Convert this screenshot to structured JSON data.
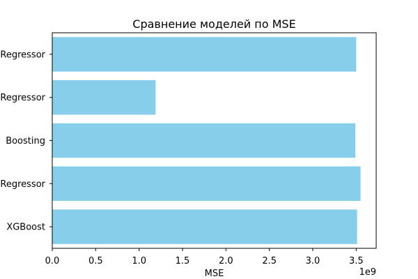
{
  "chart_data": {
    "type": "bar",
    "orientation": "horizontal",
    "title": "Сравнение моделей по MSE",
    "xlabel": "MSE",
    "ylabel": "",
    "x_offset_text": "1e9",
    "x_ticks": [
      "0.0",
      "0.5",
      "1.0",
      "1.5",
      "2.0",
      "2.5",
      "3.0",
      "3.5"
    ],
    "xlim": [
      0,
      3.73
    ],
    "x_scale": 1000000000,
    "categories": [
      "Regressor",
      "Regressor",
      "Boosting",
      "Regressor",
      "XGBoost"
    ],
    "values": [
      3.5,
      1.19,
      3.49,
      3.55,
      3.51
    ],
    "bar_color": "#87ceeb",
    "grid": false,
    "legend": "none"
  }
}
